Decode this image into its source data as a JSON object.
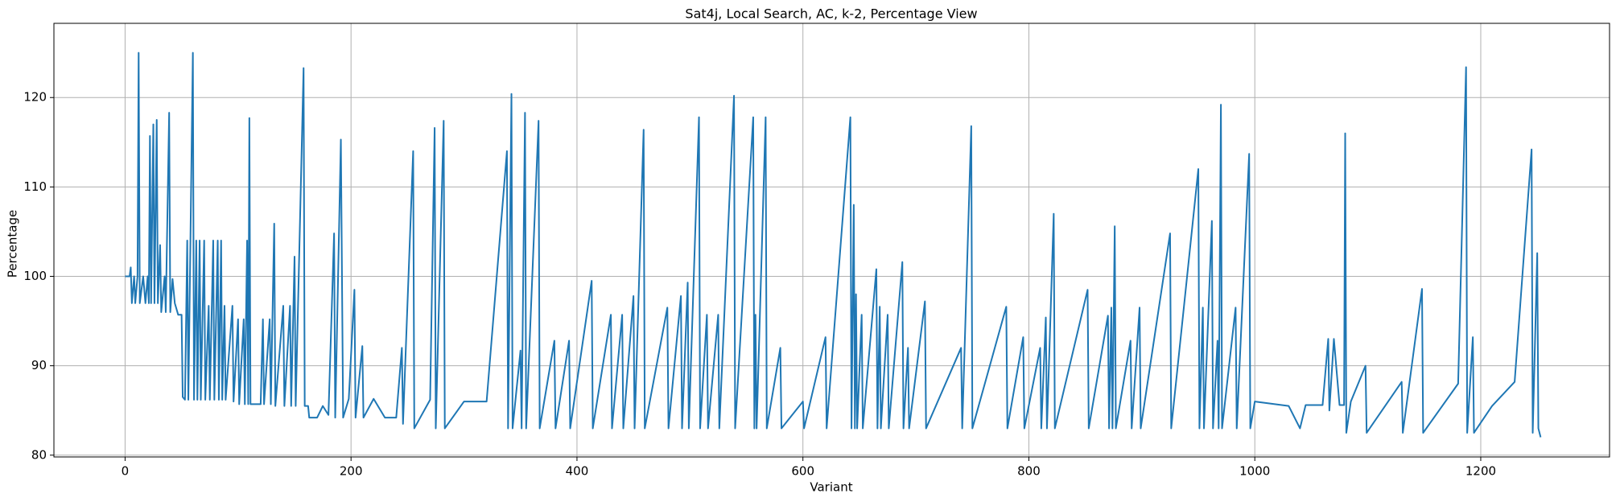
{
  "chart_data": {
    "type": "line",
    "title": "Sat4j, Local Search, AC, k-2, Percentage View",
    "x_label": "Variant",
    "y_label": "Percentage",
    "x": [
      0,
      4,
      5,
      6,
      8,
      9,
      11,
      12,
      13,
      16,
      18,
      20,
      21,
      22,
      23,
      25,
      26,
      28,
      29,
      31,
      32,
      35,
      36,
      39,
      40,
      42,
      44,
      47,
      50,
      51,
      53,
      55,
      56,
      60,
      61,
      63,
      64,
      66,
      67,
      70,
      71,
      74,
      75,
      78,
      79,
      82,
      83,
      85,
      86,
      88,
      89,
      95,
      96,
      100,
      101,
      105,
      106,
      108,
      109,
      110,
      111,
      120,
      122,
      123,
      128,
      129,
      132,
      133,
      140,
      141,
      146,
      147,
      150,
      151,
      158,
      159,
      162,
      163,
      170,
      175,
      180,
      185,
      186,
      191,
      193,
      198,
      203,
      204,
      210,
      211,
      220,
      230,
      240,
      245,
      246,
      255,
      256,
      270,
      274,
      275,
      282,
      283,
      300,
      320,
      338,
      339,
      342,
      343,
      350,
      351,
      354,
      355,
      366,
      367,
      380,
      381,
      393,
      394,
      413,
      414,
      430,
      431,
      440,
      441,
      450,
      451,
      459,
      460,
      480,
      481,
      492,
      493,
      498,
      499,
      508,
      509,
      515,
      516,
      525,
      526,
      539,
      540,
      556,
      557,
      558,
      559,
      567,
      568,
      580,
      581,
      600,
      601,
      620,
      621,
      642,
      643,
      645,
      646,
      647,
      648,
      652,
      653,
      665,
      666,
      668,
      669,
      675,
      676,
      688,
      689,
      693,
      694,
      708,
      709,
      740,
      741,
      749,
      750,
      780,
      781,
      795,
      796,
      810,
      811,
      815,
      816,
      822,
      823,
      852,
      853,
      870,
      871,
      873,
      874,
      876,
      877,
      890,
      891,
      898,
      899,
      925,
      926,
      950,
      951,
      954,
      955,
      962,
      963,
      967,
      968,
      970,
      971,
      983,
      984,
      995,
      996,
      1000,
      1030,
      1040,
      1045,
      1060,
      1065,
      1066,
      1070,
      1075,
      1079,
      1080,
      1081,
      1085,
      1098,
      1099,
      1130,
      1131,
      1148,
      1149,
      1180,
      1187,
      1188,
      1193,
      1194,
      1210,
      1230,
      1245,
      1246,
      1250,
      1251,
      1253
    ],
    "series": [
      {
        "color": "#1f77b4",
        "values": [
          100,
          100,
          101,
          97,
          100,
          97,
          100,
          125,
          97,
          100,
          97,
          100,
          97,
          115.7,
          97,
          117,
          97,
          117.5,
          97,
          103.5,
          96,
          100,
          96,
          118.3,
          96,
          99.7,
          97,
          95.7,
          95.7,
          86.5,
          86.2,
          104,
          86.2,
          125,
          86.2,
          104,
          86.2,
          104,
          86.2,
          104,
          86.2,
          96.7,
          86.2,
          104,
          86.2,
          104,
          86.2,
          104,
          86.2,
          96.7,
          86.2,
          96.7,
          86,
          95.2,
          85.7,
          95.2,
          85.7,
          104,
          85.7,
          117.7,
          85.7,
          85.7,
          95.2,
          85.7,
          95.2,
          85.7,
          105.9,
          85.5,
          96.7,
          85.5,
          96.7,
          85.5,
          102.2,
          85.5,
          123.3,
          85.5,
          85.5,
          84.2,
          84.2,
          85.5,
          84.5,
          104.8,
          84.2,
          115.3,
          84.2,
          86.3,
          98.5,
          84.2,
          92.2,
          84.2,
          86.3,
          84.2,
          84.2,
          92,
          83.5,
          114,
          83,
          86.2,
          116.6,
          83,
          117.4,
          83,
          86,
          86,
          114,
          83,
          120.4,
          83,
          91.7,
          83,
          118.3,
          83,
          117.4,
          83,
          92.8,
          83,
          92.8,
          83,
          99.5,
          83,
          95.7,
          83,
          95.7,
          83,
          97.8,
          83,
          116.4,
          83,
          96.5,
          83,
          97.8,
          83,
          99.3,
          83,
          117.8,
          83,
          95.7,
          83,
          95.7,
          83,
          120.2,
          83,
          117.8,
          83,
          95.7,
          83,
          117.8,
          83,
          92,
          83,
          86,
          83,
          93.2,
          83,
          117.8,
          83,
          108,
          83,
          98,
          83,
          95.7,
          83,
          100.8,
          83,
          96.6,
          83,
          95.7,
          83,
          101.6,
          83,
          92,
          83,
          97.2,
          83,
          92,
          83,
          116.8,
          83,
          96.6,
          83,
          93.2,
          83,
          92,
          83,
          95.4,
          83,
          107,
          83,
          98.5,
          83,
          95.6,
          83,
          96.5,
          83,
          105.6,
          83,
          92.8,
          83,
          96.5,
          83,
          104.8,
          83,
          112,
          83,
          96.5,
          83,
          106.2,
          83,
          92.8,
          83,
          119.2,
          83,
          96.5,
          83,
          113.7,
          83,
          86,
          85.5,
          83,
          85.6,
          85.6,
          93,
          85,
          93,
          85.6,
          85.6,
          116,
          82.5,
          86,
          90,
          82.5,
          88.2,
          82.5,
          98.6,
          82.5,
          88,
          123.4,
          82.5,
          93.2,
          82.5,
          85.5,
          88.2,
          114.2,
          82.5,
          102.6,
          83,
          82
        ]
      }
    ],
    "xlim": [
      -63,
      1314
    ],
    "ylim": [
      79.8,
      128.3
    ],
    "xticks": [
      0,
      200,
      400,
      600,
      800,
      1000,
      1200
    ],
    "yticks": [
      80,
      90,
      100,
      110,
      120
    ],
    "grid": true
  }
}
